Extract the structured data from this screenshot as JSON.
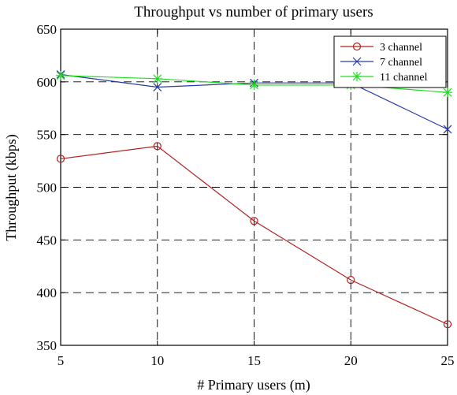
{
  "chart_data": {
    "type": "line",
    "title": "Throughput vs number of primary users",
    "xlabel": "# Primary users (m)",
    "ylabel": "Throughput (kbps)",
    "xlim": [
      5,
      25
    ],
    "ylim": [
      350,
      650
    ],
    "x_ticks": [
      5,
      10,
      15,
      20,
      25
    ],
    "y_ticks": [
      350,
      400,
      450,
      500,
      550,
      600,
      650
    ],
    "grid": true,
    "legend_position": "top-right",
    "x": [
      5,
      10,
      15,
      20,
      25
    ],
    "series": [
      {
        "name": "3 channel",
        "values": [
          527,
          539,
          468,
          412,
          370
        ],
        "color": "#b22222",
        "marker": "circle"
      },
      {
        "name": "7 channel",
        "values": [
          607,
          595,
          599,
          599,
          555
        ],
        "color": "#2b3aa8",
        "marker": "x"
      },
      {
        "name": "11 channel",
        "values": [
          606,
          603,
          597,
          597,
          590
        ],
        "color": "#22dd22",
        "marker": "star"
      }
    ]
  }
}
